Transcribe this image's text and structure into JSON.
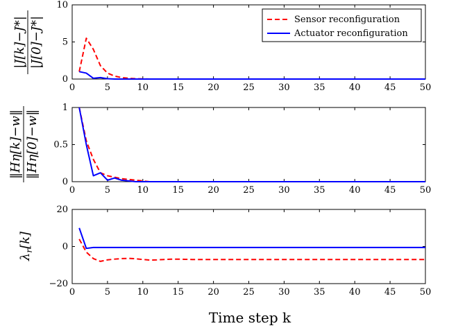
{
  "xlabel": "Time step k",
  "legend": {
    "placement": "top-right",
    "entries": [
      "Sensor reconfiguration",
      "Actuator reconfiguration"
    ]
  },
  "colors": {
    "sensor": "#ff0000",
    "actuator": "#0000ff"
  },
  "chart_data": [
    {
      "type": "line",
      "ylabel": "|J[k]−J*| / |J[0]−J*|",
      "xlim": [
        0,
        50
      ],
      "ylim": [
        0,
        10
      ],
      "xticks": [
        0,
        5,
        10,
        15,
        20,
        25,
        30,
        35,
        40,
        45,
        50
      ],
      "yticks": [
        0,
        5,
        10
      ],
      "x": [
        1,
        2,
        3,
        4,
        5,
        6,
        7,
        8,
        9,
        10,
        11,
        12,
        13,
        14,
        15,
        16,
        17,
        18,
        19,
        20,
        21,
        22,
        23,
        24,
        25,
        26,
        27,
        28,
        29,
        30,
        31,
        32,
        33,
        34,
        35,
        36,
        37,
        38,
        39,
        40,
        41,
        42,
        43,
        44,
        45,
        46,
        47,
        48,
        49,
        50
      ],
      "series": [
        {
          "name": "Sensor reconfiguration",
          "style": "dashed",
          "values": [
            1,
            5.5,
            4,
            1.8,
            0.8,
            0.4,
            0.2,
            0.1,
            0.05,
            0.02,
            0,
            0,
            0,
            0,
            0,
            0,
            0,
            0,
            0,
            0,
            0,
            0,
            0,
            0,
            0,
            0,
            0,
            0,
            0,
            0,
            0,
            0,
            0,
            0,
            0,
            0,
            0,
            0,
            0,
            0,
            0,
            0,
            0,
            0,
            0,
            0,
            0,
            0,
            0,
            0
          ]
        },
        {
          "name": "Actuator reconfiguration",
          "style": "solid",
          "values": [
            1,
            0.8,
            0.1,
            0.2,
            0.05,
            0,
            0,
            0,
            0,
            0,
            0,
            0,
            0,
            0,
            0,
            0,
            0,
            0,
            0,
            0,
            0,
            0,
            0,
            0,
            0,
            0,
            0,
            0,
            0,
            0,
            0,
            0,
            0,
            0,
            0,
            0,
            0,
            0,
            0,
            0,
            0,
            0,
            0,
            0,
            0,
            0,
            0,
            0,
            0,
            0
          ]
        }
      ]
    },
    {
      "type": "line",
      "ylabel": "‖Hη[k]−w‖ / ‖Hη[0]−w‖",
      "xlim": [
        0,
        50
      ],
      "ylim": [
        0,
        1
      ],
      "xticks": [
        0,
        5,
        10,
        15,
        20,
        25,
        30,
        35,
        40,
        45,
        50
      ],
      "yticks": [
        0,
        0.5,
        1
      ],
      "x": [
        1,
        2,
        3,
        4,
        5,
        6,
        7,
        8,
        9,
        10,
        11,
        12,
        13,
        14,
        15,
        16,
        17,
        18,
        19,
        20,
        21,
        22,
        23,
        24,
        25,
        26,
        27,
        28,
        29,
        30,
        31,
        32,
        33,
        34,
        35,
        36,
        37,
        38,
        39,
        40,
        41,
        42,
        43,
        44,
        45,
        46,
        47,
        48,
        49,
        50
      ],
      "series": [
        {
          "name": "Sensor reconfiguration",
          "style": "dashed",
          "values": [
            1,
            0.55,
            0.3,
            0.12,
            0.08,
            0.06,
            0.04,
            0.03,
            0.02,
            0.01,
            0,
            0,
            0,
            0,
            0,
            0,
            0,
            0,
            0,
            0,
            0,
            0,
            0,
            0,
            0,
            0,
            0,
            0,
            0,
            0,
            0,
            0,
            0,
            0,
            0,
            0,
            0,
            0,
            0,
            0,
            0,
            0,
            0,
            0,
            0,
            0,
            0,
            0,
            0,
            0
          ]
        },
        {
          "name": "Actuator reconfiguration",
          "style": "solid",
          "values": [
            1,
            0.5,
            0.08,
            0.12,
            0.02,
            0.05,
            0.02,
            0.01,
            0,
            0,
            0,
            0,
            0,
            0,
            0,
            0,
            0,
            0,
            0,
            0,
            0,
            0,
            0,
            0,
            0,
            0,
            0,
            0,
            0,
            0,
            0,
            0,
            0,
            0,
            0,
            0,
            0,
            0,
            0,
            0,
            0,
            0,
            0,
            0,
            0,
            0,
            0,
            0,
            0,
            0
          ]
        }
      ]
    },
    {
      "type": "line",
      "ylabel": "λr[k]",
      "xlim": [
        0,
        50
      ],
      "ylim": [
        -20,
        20
      ],
      "xticks": [
        0,
        5,
        10,
        15,
        20,
        25,
        30,
        35,
        40,
        45,
        50
      ],
      "yticks": [
        -20,
        0,
        20
      ],
      "x": [
        1,
        2,
        3,
        4,
        5,
        6,
        7,
        8,
        9,
        10,
        11,
        12,
        13,
        14,
        15,
        16,
        17,
        18,
        19,
        20,
        21,
        22,
        23,
        24,
        25,
        26,
        27,
        28,
        29,
        30,
        31,
        32,
        33,
        34,
        35,
        36,
        37,
        38,
        39,
        40,
        41,
        42,
        43,
        44,
        45,
        46,
        47,
        48,
        49,
        50
      ],
      "series": [
        {
          "name": "Sensor reconfiguration",
          "style": "dashed",
          "values": [
            4,
            -3,
            -6.5,
            -8,
            -7.2,
            -6.8,
            -6.5,
            -6.4,
            -6.6,
            -7,
            -7.3,
            -7.2,
            -7,
            -6.8,
            -6.8,
            -6.9,
            -7,
            -7,
            -7,
            -7,
            -7,
            -7,
            -7,
            -7,
            -7,
            -7,
            -7,
            -7,
            -7,
            -7,
            -7,
            -7,
            -7,
            -7,
            -7,
            -7,
            -7,
            -7,
            -7,
            -7,
            -7,
            -7,
            -7,
            -7,
            -7,
            -7,
            -7,
            -7,
            -7,
            -7
          ]
        },
        {
          "name": "Actuator reconfiguration",
          "style": "solid",
          "values": [
            10,
            -1,
            -0.5,
            -0.5,
            -0.5,
            -0.5,
            -0.5,
            -0.5,
            -0.5,
            -0.5,
            -0.5,
            -0.5,
            -0.5,
            -0.5,
            -0.5,
            -0.5,
            -0.5,
            -0.5,
            -0.5,
            -0.5,
            -0.5,
            -0.5,
            -0.5,
            -0.5,
            -0.5,
            -0.5,
            -0.5,
            -0.5,
            -0.5,
            -0.5,
            -0.5,
            -0.5,
            -0.5,
            -0.5,
            -0.5,
            -0.5,
            -0.5,
            -0.5,
            -0.5,
            -0.5,
            -0.5,
            -0.5,
            -0.5,
            -0.5,
            -0.5,
            -0.5,
            -0.5,
            -0.5,
            -0.5,
            -0.5
          ]
        }
      ]
    }
  ]
}
